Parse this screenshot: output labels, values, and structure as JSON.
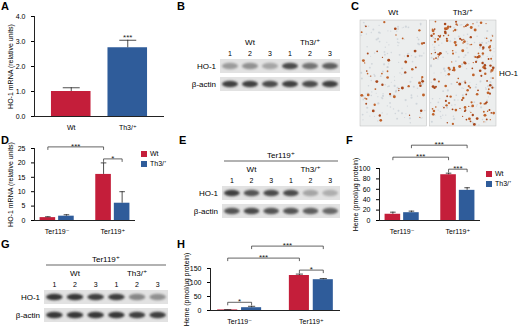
{
  "chart_data": [
    {
      "title": "A",
      "type": "bar",
      "categories": [
        "Wt",
        "Th3/⁺"
      ],
      "values": [
        1.0,
        2.75
      ],
      "errors": [
        0.15,
        0.3
      ],
      "colors": [
        "#c41e3a",
        "#2f5c9a"
      ],
      "ylabel": "HO-1 mRNA (relative units)",
      "ylim": [
        0,
        4
      ],
      "yticks": [
        0,
        1,
        2,
        3,
        4
      ],
      "annotations": [
        {
          "text": "***",
          "at": 1
        }
      ]
    },
    {
      "title": "D",
      "type": "bar",
      "categories": [
        "Ter119⁻",
        "Ter119⁺"
      ],
      "series": [
        {
          "name": "Wt",
          "color": "#c41e3a",
          "values": [
            1.0,
            16
          ],
          "errors": [
            0.3,
            4
          ]
        },
        {
          "name": "Th3/⁺",
          "color": "#2f5c9a",
          "values": [
            1.5,
            6
          ],
          "errors": [
            0.5,
            4
          ]
        }
      ],
      "ylabel": "HO-1 mRNA (relative units)",
      "ylim": [
        0,
        25
      ],
      "yticks": [
        0,
        5,
        10,
        15,
        20,
        25
      ],
      "legend": "top-right",
      "annotations": [
        {
          "text": "***",
          "from": [
            0,
            0
          ],
          "to": [
            0,
            1
          ]
        },
        {
          "text": "*",
          "from": [
            0,
            1
          ],
          "to": [
            1,
            1
          ]
        }
      ]
    },
    {
      "title": "F",
      "type": "bar",
      "categories": [
        "Ter119⁻",
        "Ter119⁺"
      ],
      "series": [
        {
          "name": "Wt",
          "color": "#c41e3a",
          "values": [
            12,
            88
          ],
          "errors": [
            4,
            3
          ]
        },
        {
          "name": "Th3/⁺",
          "color": "#2f5c9a",
          "values": [
            15,
            58
          ],
          "errors": [
            3,
            5
          ]
        }
      ],
      "ylabel": "Heme (pmol/μg protein)",
      "ylim": [
        0,
        100
      ],
      "yticks": [
        0,
        20,
        40,
        60,
        80,
        100
      ],
      "legend": "top-right",
      "annotations": [
        {
          "text": "***",
          "from": [
            0,
            0
          ],
          "to": [
            0,
            1
          ]
        },
        {
          "text": "***",
          "from": [
            1,
            0
          ],
          "to": [
            1,
            1
          ]
        },
        {
          "text": "***",
          "from": [
            0,
            1
          ],
          "to": [
            1,
            1
          ]
        }
      ]
    },
    {
      "title": "H",
      "type": "bar",
      "categories": [
        "Ter119⁻",
        "Ter119⁺"
      ],
      "series": [
        {
          "color": "#c41e3a",
          "values": [
            2,
            125
          ],
          "errors": [
            1,
            5
          ]
        },
        {
          "color": "#2f5c9a",
          "values": [
            10,
            110
          ],
          "errors": [
            5,
            4
          ]
        }
      ],
      "ylabel": "Heme (pmol/μg protein)",
      "ylim": [
        0,
        150
      ],
      "yticks": [
        0,
        50,
        100,
        150
      ],
      "annotations": [
        {
          "text": "*",
          "from": [
            0,
            0
          ],
          "to": [
            1,
            0
          ]
        },
        {
          "text": "***",
          "from": [
            0,
            0
          ],
          "to": [
            0,
            1
          ]
        },
        {
          "text": "***",
          "from": [
            1,
            0
          ],
          "to": [
            1,
            1
          ]
        },
        {
          "text": "*",
          "from": [
            0,
            1
          ],
          "to": [
            1,
            1
          ]
        }
      ]
    }
  ],
  "blots": [
    {
      "title": "B",
      "groups": [
        "Wt",
        "Th3/⁺"
      ],
      "lanes": [
        "1",
        "2",
        "3"
      ],
      "rows": [
        {
          "label": "HO-1",
          "intensities": [
            0.35,
            0.4,
            0.3,
            0.75,
            0.55,
            0.65
          ]
        },
        {
          "label": "β-actin",
          "intensities": [
            0.8,
            0.8,
            0.75,
            0.8,
            0.75,
            0.8
          ]
        }
      ]
    },
    {
      "title": "E",
      "header": "Ter119⁺",
      "groups": [
        "Wt",
        "Th3/⁺"
      ],
      "lanes": [
        "1",
        "2",
        "3"
      ],
      "rows": [
        {
          "label": "HO-1",
          "intensities": [
            0.8,
            0.7,
            0.75,
            0.75,
            0.3,
            0.25
          ]
        },
        {
          "label": "β-actin",
          "intensities": [
            0.7,
            0.75,
            0.7,
            0.7,
            0.65,
            0.6
          ]
        }
      ]
    },
    {
      "title": "G",
      "header": "Ter119⁺",
      "groups": [
        "Wt",
        "Th3/⁺"
      ],
      "lanes": [
        "1",
        "2",
        "3"
      ],
      "rows": [
        {
          "label": "HO-1",
          "intensities": [
            0.85,
            0.85,
            0.8,
            0.8,
            0.45,
            0.4
          ]
        },
        {
          "label": "β-actin",
          "intensities": [
            0.85,
            0.85,
            0.85,
            0.85,
            0.8,
            0.8
          ]
        }
      ]
    }
  ],
  "image": {
    "title": "C",
    "panels": [
      "Wt",
      "Th3/⁺"
    ],
    "stain": "HO-1"
  }
}
